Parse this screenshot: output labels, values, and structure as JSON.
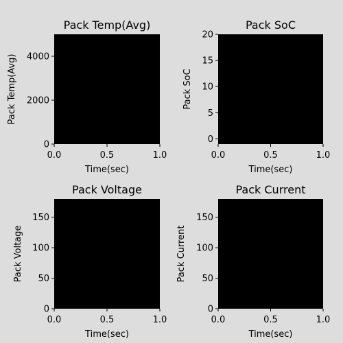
{
  "chart_data": [
    {
      "type": "line",
      "title": "Pack Temp(Avg)",
      "xlabel": "Time(sec)",
      "ylabel": "Pack Temp(Avg)",
      "xlim": [
        0,
        1
      ],
      "ylim": [
        0,
        5000
      ],
      "xticks": [
        "0.0",
        "0.5",
        "1.0"
      ],
      "xtick_values": [
        0,
        0.5,
        1
      ],
      "yticks": [
        "0",
        "2000",
        "4000"
      ],
      "ytick_values": [
        0,
        2000,
        4000
      ],
      "series": [],
      "plot_background": "#000000"
    },
    {
      "type": "line",
      "title": "Pack SoC",
      "xlabel": "Time(sec)",
      "ylabel": "Pack SoC",
      "xlim": [
        0,
        1
      ],
      "ylim": [
        -1,
        20
      ],
      "xticks": [
        "0.0",
        "0.5",
        "1.0"
      ],
      "xtick_values": [
        0,
        0.5,
        1
      ],
      "yticks": [
        "0",
        "5",
        "10",
        "15",
        "20"
      ],
      "ytick_values": [
        0,
        5,
        10,
        15,
        20
      ],
      "series": [],
      "plot_background": "#000000"
    },
    {
      "type": "line",
      "title": "Pack Voltage",
      "xlabel": "Time(sec)",
      "ylabel": "Pack Voltage",
      "xlim": [
        0,
        1
      ],
      "ylim": [
        0,
        180
      ],
      "xticks": [
        "0.0",
        "0.5",
        "1.0"
      ],
      "xtick_values": [
        0,
        0.5,
        1
      ],
      "yticks": [
        "0",
        "50",
        "100",
        "150"
      ],
      "ytick_values": [
        0,
        50,
        100,
        150
      ],
      "series": [],
      "plot_background": "#000000"
    },
    {
      "type": "line",
      "title": "Pack Current",
      "xlabel": "Time(sec)",
      "ylabel": "Pack Current",
      "xlim": [
        0,
        1
      ],
      "ylim": [
        0,
        180
      ],
      "xticks": [
        "0.0",
        "0.5",
        "1.0"
      ],
      "xtick_values": [
        0,
        0.5,
        1
      ],
      "yticks": [
        "0",
        "50",
        "100",
        "150"
      ],
      "ytick_values": [
        0,
        50,
        100,
        150
      ],
      "series": [],
      "plot_background": "#000000"
    }
  ],
  "figure_background": "#dddddd"
}
